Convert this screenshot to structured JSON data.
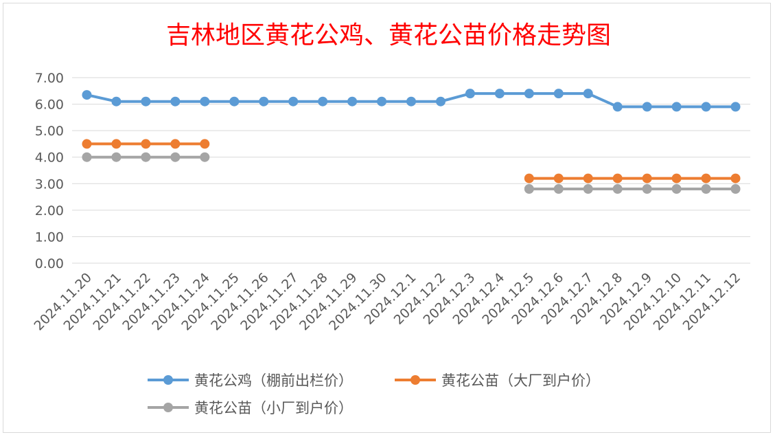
{
  "chart_data": {
    "type": "line",
    "title": "吉林地区黄花公鸡、黄花公苗价格走势图",
    "categories": [
      "2024.11.20",
      "2024.11.21",
      "2024.11.22",
      "2024.11.23",
      "2024.11.24",
      "2024.11.25",
      "2024.11.26",
      "2024.11.27",
      "2024.11.28",
      "2024.11.29",
      "2024.11.30",
      "2024.12.1",
      "2024.12.2",
      "2024.12.3",
      "2024.12.4",
      "2024.12.5",
      "2024.12.6",
      "2024.12.7",
      "2024.12.8",
      "2024.12.9",
      "2024.12.10",
      "2024.12.11",
      "2024.12.12"
    ],
    "ylim": [
      0,
      7
    ],
    "y_ticks": [
      "0.00",
      "1.00",
      "2.00",
      "3.00",
      "4.00",
      "5.00",
      "6.00",
      "7.00"
    ],
    "grid": true,
    "legend_position": "bottom",
    "series": [
      {
        "name": "黄花公鸡（棚前出栏价）",
        "color": "#5b9bd5",
        "values": [
          6.35,
          6.1,
          6.1,
          6.1,
          6.1,
          6.1,
          6.1,
          6.1,
          6.1,
          6.1,
          6.1,
          6.1,
          6.1,
          6.4,
          6.4,
          6.4,
          6.4,
          6.4,
          5.9,
          5.9,
          5.9,
          5.9,
          5.9
        ]
      },
      {
        "name": "黄花公苗（大厂到户价）",
        "color": "#ed7d31",
        "values": [
          4.5,
          4.5,
          4.5,
          4.5,
          4.5,
          null,
          null,
          null,
          null,
          null,
          null,
          null,
          null,
          null,
          null,
          3.2,
          3.2,
          3.2,
          3.2,
          3.2,
          3.2,
          3.2,
          3.2
        ]
      },
      {
        "name": "黄花公苗（小厂到户价）",
        "color": "#a5a5a5",
        "values": [
          4.0,
          4.0,
          4.0,
          4.0,
          4.0,
          null,
          null,
          null,
          null,
          null,
          null,
          null,
          null,
          null,
          null,
          2.8,
          2.8,
          2.8,
          2.8,
          2.8,
          2.8,
          2.8,
          2.8
        ]
      }
    ]
  },
  "colors": {
    "title": "#ff0000",
    "gridline": "#d9d9d9",
    "axis_text": "#595959"
  }
}
